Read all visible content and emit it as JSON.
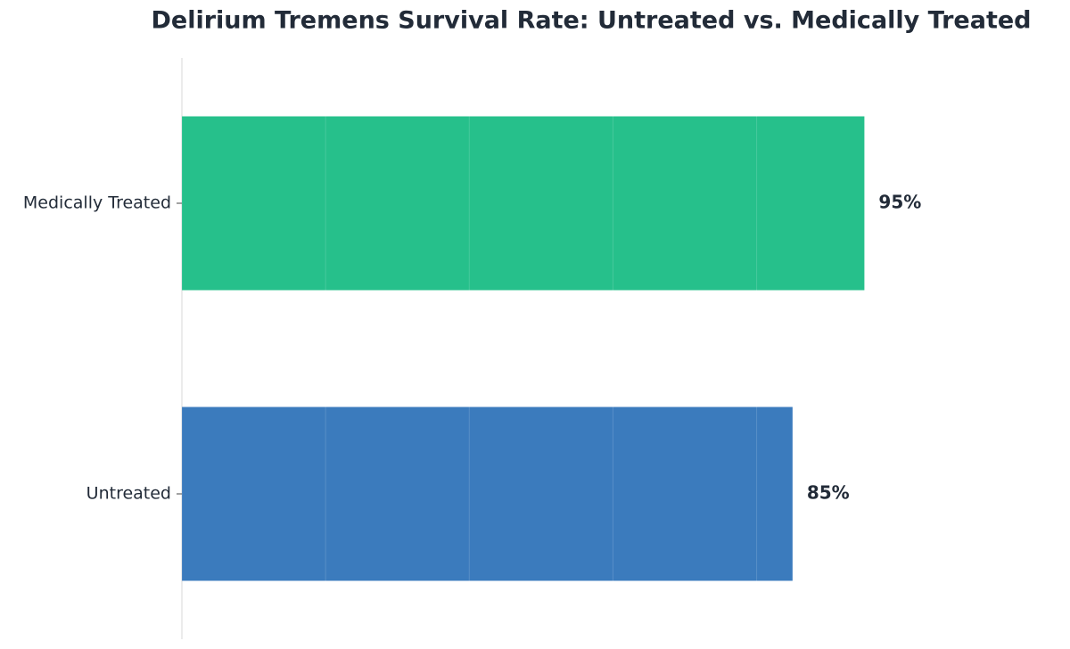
{
  "chart_data": {
    "type": "barh",
    "title": "Delirium Tremens Survival Rate: Untreated vs. Medically Treated",
    "categories": [
      "Medically Treated",
      "Untreated"
    ],
    "values": [
      95,
      85
    ],
    "value_labels": [
      "95%",
      "85%"
    ],
    "colors": [
      "#26c08b",
      "#3b7bbd"
    ],
    "xlim": [
      0,
      123
    ],
    "xticks": [
      0,
      20,
      40,
      60,
      80
    ],
    "grid": true
  }
}
